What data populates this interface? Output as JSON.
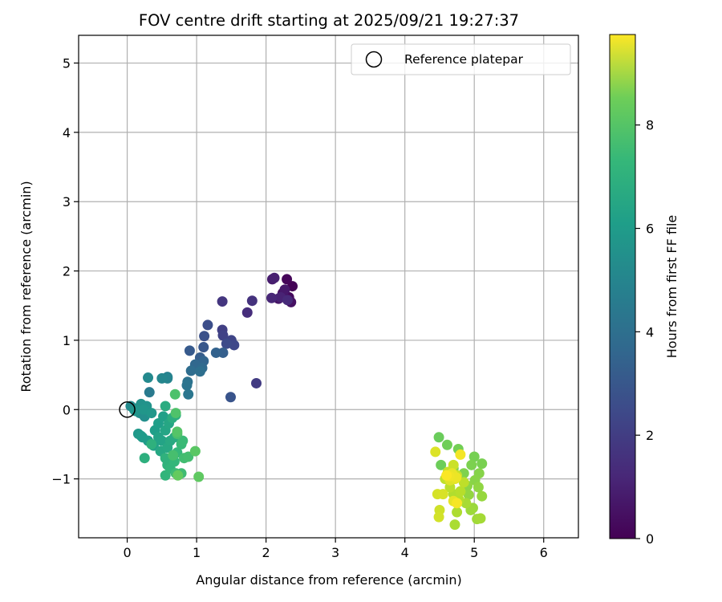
{
  "chart_data": {
    "type": "scatter",
    "title": "FOV centre drift starting at 2025/09/21 19:27:37",
    "xlabel": "Angular distance from reference (arcmin)",
    "ylabel": "Rotation from reference (arcmin)",
    "xlim": [
      -0.7,
      6.5
    ],
    "ylim": [
      -1.85,
      5.4
    ],
    "xticks": [
      0,
      1,
      2,
      3,
      4,
      5,
      6
    ],
    "yticks": [
      -1,
      0,
      1,
      2,
      3,
      4,
      5
    ],
    "grid": true,
    "legend": {
      "position": "top-right",
      "label": "Reference platepar"
    },
    "reference_point": {
      "x": 0,
      "y": 0
    },
    "colorbar": {
      "label": "Hours from first FF file",
      "colormap": "viridis",
      "range": [
        0,
        9.75
      ],
      "ticks": [
        0,
        2,
        4,
        6,
        8
      ]
    },
    "points": [
      {
        "x": 2.38,
        "y": 1.78,
        "t": 0.05
      },
      {
        "x": 2.3,
        "y": 1.88,
        "t": 0.15
      },
      {
        "x": 2.33,
        "y": 1.62,
        "t": 0.25
      },
      {
        "x": 2.24,
        "y": 1.68,
        "t": 0.35
      },
      {
        "x": 2.36,
        "y": 1.55,
        "t": 0.45
      },
      {
        "x": 2.18,
        "y": 1.6,
        "t": 0.55
      },
      {
        "x": 2.27,
        "y": 1.73,
        "t": 0.65
      },
      {
        "x": 2.09,
        "y": 1.88,
        "t": 0.75
      },
      {
        "x": 2.12,
        "y": 1.9,
        "t": 0.85
      },
      {
        "x": 2.21,
        "y": 1.62,
        "t": 0.95
      },
      {
        "x": 2.08,
        "y": 1.61,
        "t": 1.05
      },
      {
        "x": 2.31,
        "y": 1.58,
        "t": 1.15
      },
      {
        "x": 1.73,
        "y": 1.4,
        "t": 1.25
      },
      {
        "x": 1.8,
        "y": 1.57,
        "t": 1.4
      },
      {
        "x": 1.37,
        "y": 1.56,
        "t": 1.55
      },
      {
        "x": 1.86,
        "y": 0.38,
        "t": 1.7
      },
      {
        "x": 1.37,
        "y": 1.15,
        "t": 1.85
      },
      {
        "x": 1.38,
        "y": 1.07,
        "t": 1.95
      },
      {
        "x": 1.5,
        "y": 1.0,
        "t": 2.05
      },
      {
        "x": 1.54,
        "y": 0.93,
        "t": 2.15
      },
      {
        "x": 1.43,
        "y": 0.95,
        "t": 2.25
      },
      {
        "x": 1.16,
        "y": 1.22,
        "t": 2.35
      },
      {
        "x": 1.11,
        "y": 1.06,
        "t": 2.45
      },
      {
        "x": 1.49,
        "y": 0.18,
        "t": 2.55
      },
      {
        "x": 1.1,
        "y": 0.9,
        "t": 2.65
      },
      {
        "x": 0.9,
        "y": 0.85,
        "t": 2.75
      },
      {
        "x": 1.05,
        "y": 0.75,
        "t": 2.85
      },
      {
        "x": 1.38,
        "y": 0.82,
        "t": 2.95
      },
      {
        "x": 1.28,
        "y": 0.82,
        "t": 3.05
      },
      {
        "x": 1.1,
        "y": 0.7,
        "t": 3.15
      },
      {
        "x": 0.98,
        "y": 0.65,
        "t": 3.25
      },
      {
        "x": 1.08,
        "y": 0.6,
        "t": 3.35
      },
      {
        "x": 0.92,
        "y": 0.56,
        "t": 3.45
      },
      {
        "x": 1.05,
        "y": 0.55,
        "t": 3.55
      },
      {
        "x": 0.87,
        "y": 0.4,
        "t": 3.65
      },
      {
        "x": 0.86,
        "y": 0.35,
        "t": 3.75
      },
      {
        "x": 0.88,
        "y": 0.22,
        "t": 3.85
      },
      {
        "x": 0.32,
        "y": 0.25,
        "t": 4.0
      },
      {
        "x": 0.58,
        "y": 0.47,
        "t": 4.2
      },
      {
        "x": 0.58,
        "y": 0.45,
        "t": 4.4
      },
      {
        "x": 0.5,
        "y": 0.45,
        "t": 4.5
      },
      {
        "x": 0.3,
        "y": 0.46,
        "t": 4.6
      },
      {
        "x": 0.05,
        "y": 0.05,
        "t": 4.65
      },
      {
        "x": 0.15,
        "y": 0.02,
        "t": 4.7
      },
      {
        "x": 0.22,
        "y": 0.05,
        "t": 4.75
      },
      {
        "x": 0.18,
        "y": -0.05,
        "t": 4.8
      },
      {
        "x": 0.25,
        "y": -0.1,
        "t": 4.85
      },
      {
        "x": 0.1,
        "y": 0.0,
        "t": 4.9
      },
      {
        "x": 0.2,
        "y": 0.08,
        "t": 4.95
      },
      {
        "x": 0.28,
        "y": 0.05,
        "t": 5.0
      },
      {
        "x": 0.12,
        "y": -0.02,
        "t": 5.05
      },
      {
        "x": 0.24,
        "y": 0.0,
        "t": 5.1
      },
      {
        "x": 0.35,
        "y": -0.05,
        "t": 5.15
      },
      {
        "x": 0.16,
        "y": -0.35,
        "t": 5.2
      },
      {
        "x": 0.22,
        "y": -0.4,
        "t": 5.25
      },
      {
        "x": 0.2,
        "y": -0.38,
        "t": 5.3
      },
      {
        "x": 0.3,
        "y": -0.45,
        "t": 5.35
      },
      {
        "x": 0.4,
        "y": -0.3,
        "t": 5.4
      },
      {
        "x": 0.45,
        "y": -0.2,
        "t": 5.45
      },
      {
        "x": 0.52,
        "y": -0.1,
        "t": 5.5
      },
      {
        "x": 0.38,
        "y": -0.52,
        "t": 5.55
      },
      {
        "x": 0.45,
        "y": -0.4,
        "t": 5.6
      },
      {
        "x": 0.5,
        "y": -0.45,
        "t": 5.65
      },
      {
        "x": 0.55,
        "y": -0.3,
        "t": 5.7
      },
      {
        "x": 0.6,
        "y": -0.2,
        "t": 5.75
      },
      {
        "x": 0.48,
        "y": -0.6,
        "t": 5.8
      },
      {
        "x": 0.58,
        "y": -0.55,
        "t": 5.85
      },
      {
        "x": 0.62,
        "y": -0.45,
        "t": 5.9
      },
      {
        "x": 0.68,
        "y": -0.4,
        "t": 5.95
      },
      {
        "x": 0.55,
        "y": 0.05,
        "t": 6.0
      },
      {
        "x": 0.65,
        "y": -0.12,
        "t": 6.05
      },
      {
        "x": 0.7,
        "y": -0.08,
        "t": 6.1
      },
      {
        "x": 0.25,
        "y": -0.7,
        "t": 6.15
      },
      {
        "x": 0.35,
        "y": -0.5,
        "t": 6.2
      },
      {
        "x": 0.55,
        "y": -0.7,
        "t": 6.25
      },
      {
        "x": 0.58,
        "y": -0.8,
        "t": 6.3
      },
      {
        "x": 0.55,
        "y": -0.95,
        "t": 6.35
      },
      {
        "x": 0.62,
        "y": -0.85,
        "t": 6.4
      },
      {
        "x": 0.68,
        "y": -0.75,
        "t": 6.45
      },
      {
        "x": 0.72,
        "y": -0.62,
        "t": 6.5
      },
      {
        "x": 0.78,
        "y": -0.5,
        "t": 6.55
      },
      {
        "x": 0.8,
        "y": -0.45,
        "t": 6.6
      },
      {
        "x": 0.7,
        "y": -0.92,
        "t": 6.65
      },
      {
        "x": 0.78,
        "y": -0.92,
        "t": 6.7
      },
      {
        "x": 0.82,
        "y": -0.7,
        "t": 6.75
      },
      {
        "x": 0.88,
        "y": -0.68,
        "t": 6.8
      },
      {
        "x": 0.66,
        "y": -0.66,
        "t": 6.85
      },
      {
        "x": 0.72,
        "y": -0.35,
        "t": 6.9
      },
      {
        "x": 0.69,
        "y": 0.22,
        "t": 6.95
      },
      {
        "x": 0.7,
        "y": -0.05,
        "t": 7.0
      },
      {
        "x": 0.72,
        "y": -0.32,
        "t": 7.1
      },
      {
        "x": 0.98,
        "y": -0.6,
        "t": 7.2
      },
      {
        "x": 1.03,
        "y": -0.97,
        "t": 7.3
      },
      {
        "x": 0.73,
        "y": -0.95,
        "t": 7.4
      },
      {
        "x": 4.49,
        "y": -0.4,
        "t": 7.5
      },
      {
        "x": 4.52,
        "y": -0.8,
        "t": 7.55
      },
      {
        "x": 4.61,
        "y": -0.51,
        "t": 7.6
      },
      {
        "x": 4.77,
        "y": -0.57,
        "t": 7.65
      },
      {
        "x": 5.0,
        "y": -0.68,
        "t": 7.7
      },
      {
        "x": 5.11,
        "y": -0.78,
        "t": 7.75
      },
      {
        "x": 4.96,
        "y": -0.8,
        "t": 7.8
      },
      {
        "x": 4.85,
        "y": -0.92,
        "t": 7.85
      },
      {
        "x": 4.7,
        "y": -0.85,
        "t": 7.9
      },
      {
        "x": 5.07,
        "y": -0.92,
        "t": 7.95
      },
      {
        "x": 5.01,
        "y": -1.02,
        "t": 8.0
      },
      {
        "x": 4.9,
        "y": -1.1,
        "t": 8.05
      },
      {
        "x": 5.06,
        "y": -1.12,
        "t": 8.1
      },
      {
        "x": 4.92,
        "y": -1.23,
        "t": 8.15
      },
      {
        "x": 5.11,
        "y": -1.25,
        "t": 8.2
      },
      {
        "x": 4.98,
        "y": -1.42,
        "t": 8.25
      },
      {
        "x": 4.95,
        "y": -1.45,
        "t": 8.3
      },
      {
        "x": 5.04,
        "y": -1.58,
        "t": 8.35
      },
      {
        "x": 5.09,
        "y": -1.57,
        "t": 8.4
      },
      {
        "x": 4.88,
        "y": -1.35,
        "t": 8.45
      },
      {
        "x": 4.72,
        "y": -1.66,
        "t": 8.5
      },
      {
        "x": 4.75,
        "y": -1.48,
        "t": 8.55
      },
      {
        "x": 4.7,
        "y": -1.22,
        "t": 8.6
      },
      {
        "x": 4.78,
        "y": -1.3,
        "t": 8.65
      },
      {
        "x": 4.8,
        "y": -1.18,
        "t": 8.7
      },
      {
        "x": 4.65,
        "y": -1.12,
        "t": 8.75
      },
      {
        "x": 4.85,
        "y": -1.05,
        "t": 8.8
      },
      {
        "x": 4.58,
        "y": -1.0,
        "t": 8.85
      },
      {
        "x": 4.75,
        "y": -0.95,
        "t": 8.9
      },
      {
        "x": 4.62,
        "y": -0.9,
        "t": 8.95
      },
      {
        "x": 4.7,
        "y": -0.8,
        "t": 9.0
      },
      {
        "x": 4.5,
        "y": -1.45,
        "t": 9.05
      },
      {
        "x": 4.49,
        "y": -1.55,
        "t": 9.1
      },
      {
        "x": 4.47,
        "y": -1.22,
        "t": 9.15
      },
      {
        "x": 4.55,
        "y": -1.22,
        "t": 9.2
      },
      {
        "x": 4.44,
        "y": -0.61,
        "t": 9.25
      },
      {
        "x": 4.65,
        "y": -1.02,
        "t": 9.3
      },
      {
        "x": 4.72,
        "y": -1.0,
        "t": 9.35
      },
      {
        "x": 4.7,
        "y": -1.32,
        "t": 9.4
      },
      {
        "x": 4.68,
        "y": -0.92,
        "t": 9.45
      },
      {
        "x": 4.74,
        "y": -0.98,
        "t": 9.5
      },
      {
        "x": 4.64,
        "y": -0.96,
        "t": 9.55
      },
      {
        "x": 4.8,
        "y": -0.65,
        "t": 9.6
      },
      {
        "x": 4.75,
        "y": -1.35,
        "t": 9.65
      },
      {
        "x": 4.6,
        "y": -0.95,
        "t": 9.7
      }
    ]
  }
}
